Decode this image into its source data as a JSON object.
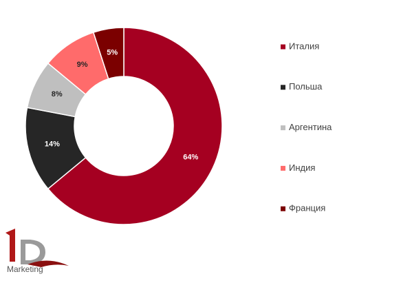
{
  "chart_data": {
    "type": "donut",
    "categories": [
      "Италия",
      "Польша",
      "Аргентина",
      "Индия",
      "Франция"
    ],
    "values": [
      64,
      14,
      8,
      9,
      5
    ],
    "value_labels": [
      "64%",
      "14%",
      "8%",
      "9%",
      "5%"
    ],
    "colors": [
      "#a50021",
      "#262626",
      "#bfbfbf",
      "#ff6b6b",
      "#7b0000"
    ],
    "legend": "right"
  },
  "logo": {
    "text": "Marketing"
  }
}
